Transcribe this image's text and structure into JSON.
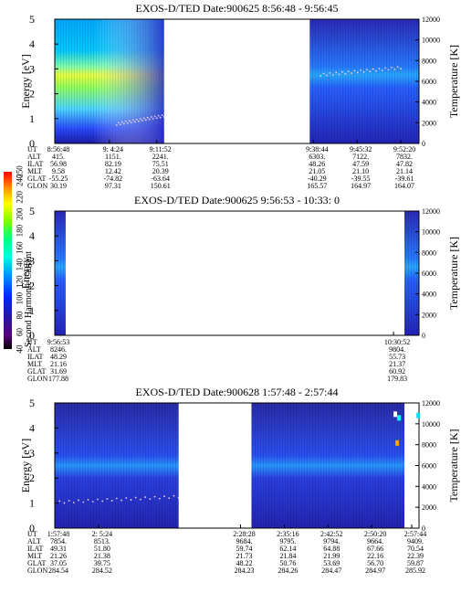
{
  "colorbar": {
    "label": "Second Harmonic Current",
    "ticks": [
      "40",
      "60",
      "80",
      "100",
      "120",
      "140",
      "160",
      "180",
      "200",
      "220",
      "240",
      "250"
    ],
    "range": [
      40,
      250
    ],
    "colors": [
      "#000000",
      "#5a0080",
      "#1c1ca8",
      "#0028ff",
      "#0064ff",
      "#0096ff",
      "#00c8ff",
      "#00ffe0",
      "#00ff80",
      "#7cff00",
      "#ffff00",
      "#ffa000",
      "#ff0000"
    ]
  },
  "chart_data": [
    {
      "type": "heatmap",
      "title": "EXOS-D/TED   Date:900625  8:56:48 - 9:56:45",
      "ylabel": "Energy [eV]",
      "y2label": "Temperature [K]",
      "ylim": [
        0,
        5
      ],
      "y2lim": [
        0,
        12000
      ],
      "yticks": [
        "0",
        "1",
        "2",
        "3",
        "4",
        "5"
      ],
      "y2ticks": [
        "0",
        "2000",
        "4000",
        "6000",
        "8000",
        "10000",
        "12000"
      ],
      "orbit_labels": [
        "UT",
        "ALT",
        "ILAT",
        "MLT",
        "GLAT",
        "GLON"
      ],
      "orbit_table": [
        {
          "t": 0,
          "values": [
            "8:56:48",
            "415.",
            "56.98",
            "9.58",
            "-55.25",
            "30.19"
          ]
        },
        {
          "t": 0.15,
          "values": [
            "9: 4:24",
            "1151.",
            "82.19",
            "12.42",
            "-74.82",
            "97.31"
          ]
        },
        {
          "t": 0.28,
          "values": [
            "9:11:52",
            "2241.",
            "75.51",
            "20.39",
            "-63.64",
            "150.61"
          ]
        },
        {
          "t": 0.71,
          "values": [
            "9:38:44",
            "6303.",
            "48.26",
            "21.05",
            "-40.29",
            "165.57"
          ]
        },
        {
          "t": 0.83,
          "values": [
            "9:45:32",
            "7122.",
            "47.59",
            "21.10",
            "-39.55",
            "164.97"
          ]
        },
        {
          "t": 0.95,
          "values": [
            "9:52:20",
            "7832.",
            "47.82",
            "21.14",
            "-39.61",
            "164.07"
          ]
        }
      ],
      "data_intervals": [
        [
          0.0,
          0.3
        ],
        [
          0.7,
          1.0
        ]
      ]
    },
    {
      "type": "heatmap",
      "title": "EXOS-D/TED   Date:900625  9:56:53 - 10:33: 0",
      "ylabel": "Energy",
      "y2label": "Temperature [K]",
      "ylim": [
        0,
        5
      ],
      "y2lim": [
        0,
        12000
      ],
      "yticks": [
        "0",
        "1",
        "2",
        "3",
        "4",
        "5"
      ],
      "y2ticks": [
        "0",
        "2000",
        "4000",
        "6000",
        "8000",
        "10000",
        "12000"
      ],
      "orbit_labels": [
        "UT",
        "ALT",
        "ILAT",
        "MLT",
        "GLAT",
        "GLON"
      ],
      "orbit_table": [
        {
          "t": 0,
          "values": [
            "9:56:53",
            "8246.",
            "48.29",
            "21.16",
            "31.69",
            "177.88"
          ]
        },
        {
          "t": 0.93,
          "values": [
            "10:30:52",
            "9804.",
            "55.73",
            "21.37",
            "60.92",
            "179.83"
          ]
        }
      ],
      "data_intervals": [
        [
          0.0,
          0.03
        ],
        [
          0.96,
          1.0
        ]
      ]
    },
    {
      "type": "heatmap",
      "title": "EXOS-D/TED   Date:900628  1:57:48 - 2:57:44",
      "ylabel": "Energy [eV]",
      "y2label": "Temperature [K]",
      "ylim": [
        0,
        5
      ],
      "y2lim": [
        0,
        12000
      ],
      "yticks": [
        "0",
        "1",
        "2",
        "3",
        "4",
        "5"
      ],
      "y2ticks": [
        "0",
        "2000",
        "4000",
        "6000",
        "8000",
        "10000",
        "12000"
      ],
      "orbit_labels": [
        "UT",
        "ALT",
        "ILAT",
        "MLT",
        "GLAT",
        "GLON"
      ],
      "orbit_table": [
        {
          "t": 0,
          "values": [
            "1:57:48",
            "7854.",
            "49.31",
            "21.26",
            "37.05",
            "284.54"
          ]
        },
        {
          "t": 0.12,
          "values": [
            "2: 5:24",
            "8513.",
            "51.80",
            "21.38",
            "39.75",
            "284.52"
          ]
        },
        {
          "t": 0.51,
          "values": [
            "2:28:28",
            "9684.",
            "59.74",
            "21.73",
            "48.22",
            "284.23"
          ]
        },
        {
          "t": 0.63,
          "values": [
            "2:35:16",
            "9795.",
            "62.14",
            "21.84",
            "50.76",
            "284.26"
          ]
        },
        {
          "t": 0.75,
          "values": [
            "2:42:52",
            "9794.",
            "64.88",
            "21.99",
            "53.69",
            "284.47"
          ]
        },
        {
          "t": 0.87,
          "values": [
            "2:50:20",
            "9664.",
            "67.66",
            "22.16",
            "56.70",
            "284.97"
          ]
        },
        {
          "t": 0.98,
          "values": [
            "2:57:44",
            "9409.",
            "70.54",
            "22.39",
            "59.87",
            "285.92"
          ]
        }
      ],
      "data_intervals": [
        [
          0.0,
          0.34
        ],
        [
          0.54,
          0.96
        ]
      ]
    }
  ]
}
